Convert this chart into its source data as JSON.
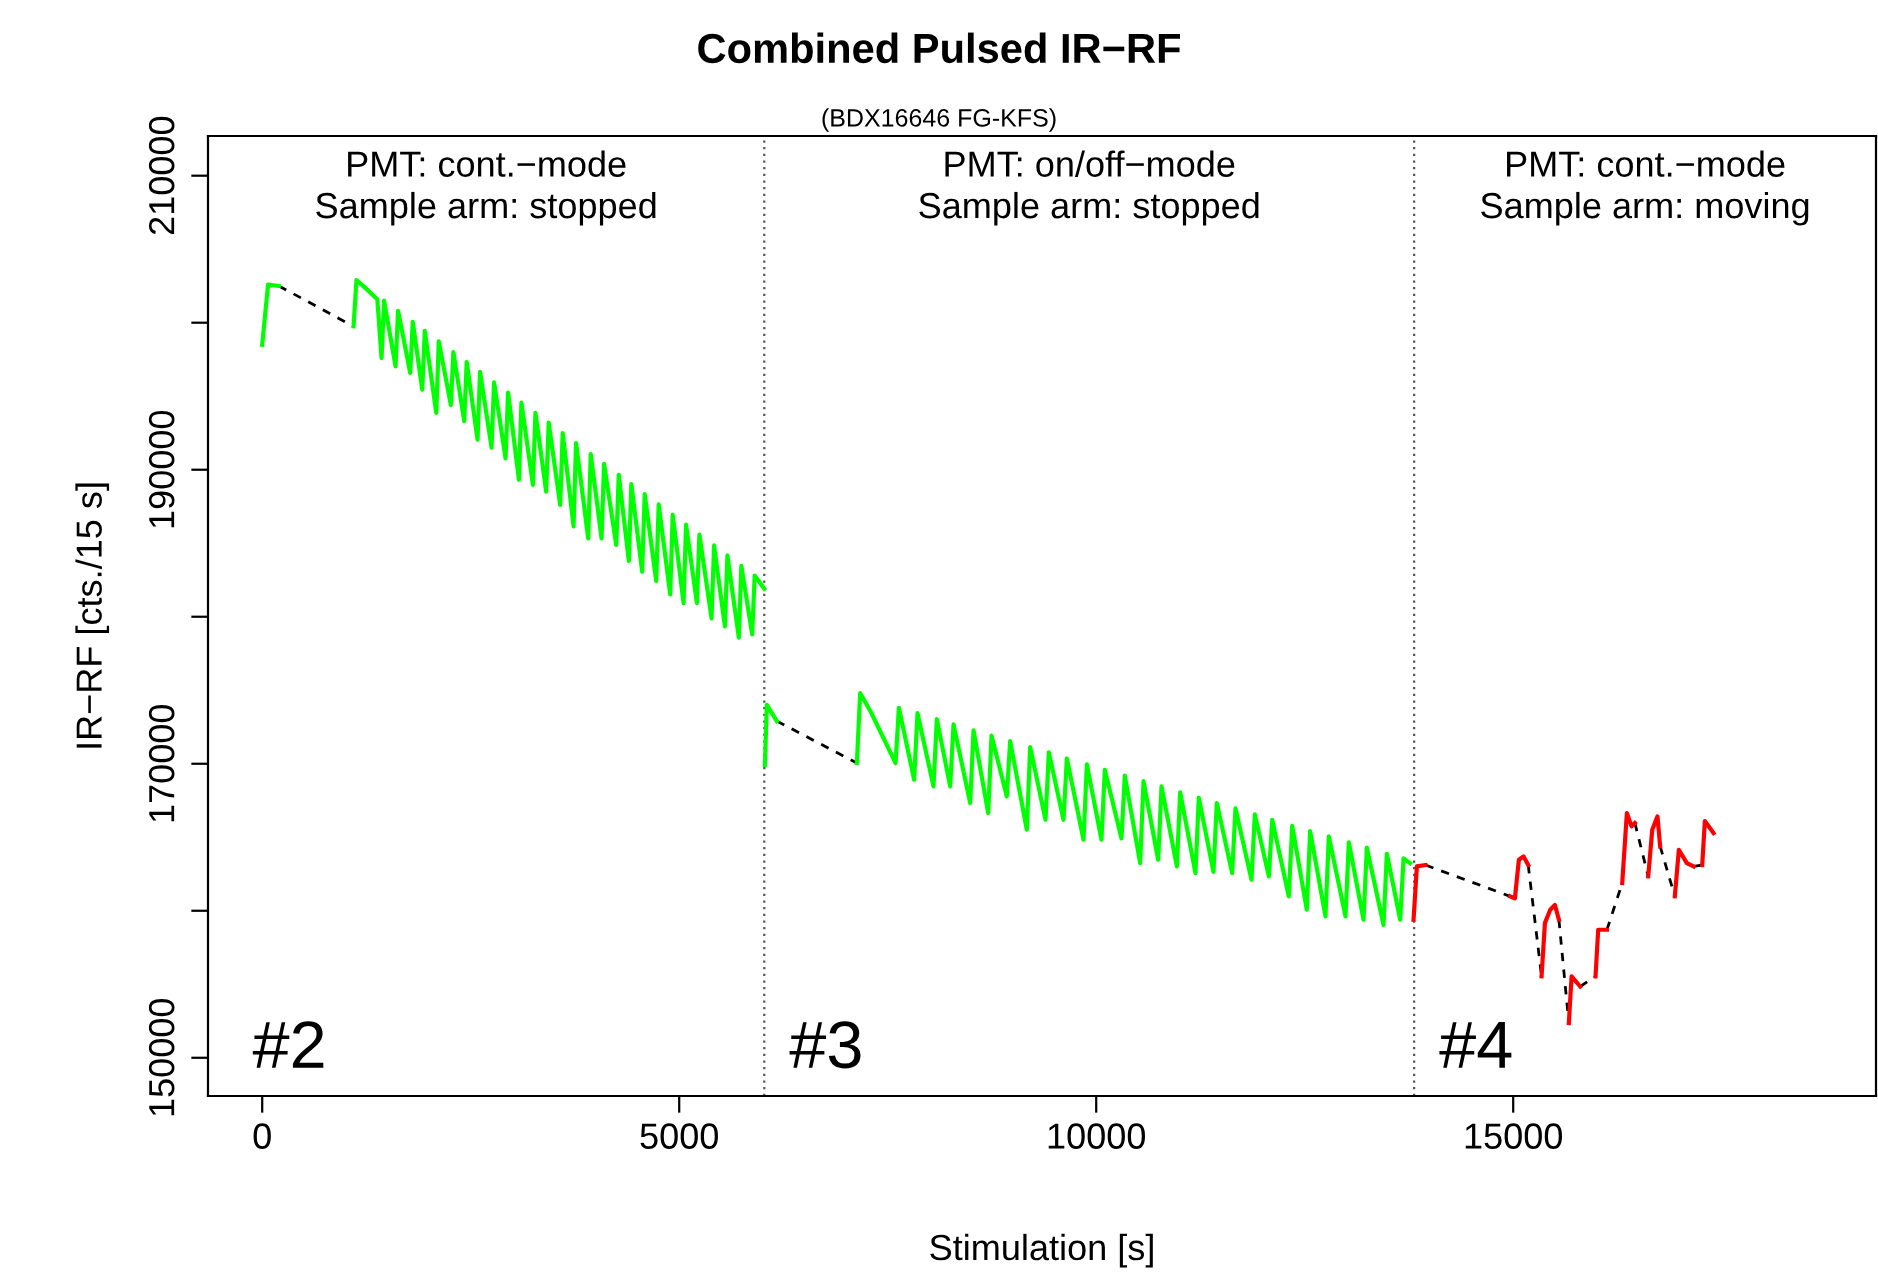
{
  "chart_data": {
    "type": "line",
    "title": "Combined Pulsed IR−RF",
    "subtitle": "(BDX16646 FG-KFS)",
    "xlabel": "Stimulation [s]",
    "ylabel": "IR−RF [cts./15 s]",
    "xlim": [
      -650,
      19350
    ],
    "ylim": [
      147400,
      212700
    ],
    "xticks": [
      0,
      5000,
      10000,
      15000
    ],
    "yticks": [
      150000,
      {
        "value": 160000,
        "label": null
      },
      170000,
      {
        "value": 180000,
        "label": null
      },
      190000,
      {
        "value": 200000,
        "label": null
      },
      210000
    ],
    "grid": false,
    "legend": false,
    "marker": "none",
    "ref_lines": [
      {
        "axis": "x",
        "value": 6020,
        "color": "#555555",
        "line_style": "dotted"
      },
      {
        "axis": "x",
        "value": 13812,
        "color": "#555555",
        "line_style": "dotted"
      }
    ],
    "annotations": [
      "PMT: cont.−mode\nSample arm: stopped",
      "PMT: on/off−mode\nSample arm: stopped",
      "PMT: cont.−mode\nSample arm: moving",
      "#2",
      "#3",
      "#4"
    ],
    "series": [
      {
        "color": "#00ff00",
        "line_style": "solid",
        "x": [
          0,
          70,
          200,
          600,
          1095,
          1130,
          1250,
          1380,
          1431,
          1461,
          1599,
          1629,
          1775,
          1805,
          1919,
          1949,
          2087,
          2117,
          2262,
          2292,
          2422,
          2452,
          2582,
          2612,
          2750,
          2780,
          2918,
          2948,
          3078,
          3108,
          3246,
          3276,
          3405,
          3435,
          3573,
          3603,
          3733,
          3763,
          3909,
          3939,
          4069,
          4099,
          4245,
          4275,
          4396,
          4426,
          4556,
          4586,
          4724,
          4754,
          4892,
          4922,
          5052,
          5082,
          5212,
          5242,
          5388,
          5418,
          5548,
          5578,
          5715,
          5745,
          5875,
          5905,
          6020,
          6025,
          6027,
          6051,
          6171,
          6600,
          7130,
          7170,
          7300,
          7594,
          7634,
          7817,
          7857,
          8049,
          8089,
          8249,
          8289,
          8489,
          8529,
          8705,
          8745,
          8928,
          8968,
          9168,
          9208,
          9392,
          9432,
          9608,
          9648,
          9848,
          9888,
          10063,
          10103,
          10303,
          10343,
          10527,
          10567,
          10743,
          10783,
          10967,
          11007,
          11190,
          11230,
          11406,
          11446,
          11630,
          11670,
          11862,
          11902,
          12070,
          12110,
          12309,
          12350,
          12525,
          12565,
          12749,
          12789,
          12989,
          13029,
          13205,
          13245,
          13445,
          13485,
          13645,
          13685,
          13764
        ],
        "values": [
          198500,
          202600,
          202500,
          null,
          199750,
          202900,
          202300,
          201600,
          197600,
          201500,
          197030,
          200800,
          196580,
          200060,
          195440,
          199450,
          193860,
          198740,
          194400,
          198010,
          193310,
          197330,
          192040,
          196660,
          191500,
          195950,
          190770,
          195250,
          189320,
          194570,
          188960,
          193870,
          188500,
          193200,
          187600,
          192490,
          186150,
          191810,
          185330,
          191070,
          185330,
          190400,
          184880,
          189660,
          183790,
          189020,
          183060,
          188350,
          182430,
          187640,
          181520,
          186940,
          180930,
          186260,
          180930,
          185590,
          179890,
          184850,
          179340,
          184170,
          178570,
          183470,
          178800,
          182800,
          181900,
          null,
          169910,
          174000,
          172900,
          null,
          170050,
          174800,
          173500,
          170050,
          173810,
          168910,
          173450,
          168460,
          173040,
          168460,
          172680,
          167330,
          172270,
          166645,
          171910,
          167780,
          171540,
          165510,
          171140,
          166190,
          170770,
          166190,
          170360,
          164830,
          169960,
          164830,
          169590,
          164920,
          169190,
          163240,
          168820,
          163470,
          168460,
          163020,
          168050,
          162560,
          167690,
          162650,
          167330,
          162560,
          166960,
          162110,
          166555,
          162340,
          166190,
          160980,
          165780,
          160070,
          165420,
          159620,
          165060,
          159620,
          164650,
          159390,
          164290,
          159030,
          163880,
          159390,
          163560,
          163240
        ]
      },
      {
        "color": "#ff0000",
        "line_style": "solid",
        "x": [
          13805,
          13845,
          13949,
          14500,
          14964,
          15020,
          15068,
          15124,
          15180,
          15260,
          15340,
          15380,
          15444,
          15500,
          15548,
          15600,
          15667,
          15700,
          15803,
          15900,
          15987,
          16019,
          16124,
          16200,
          16307,
          16363,
          16419,
          16459,
          16540,
          16619,
          16667,
          16730,
          16762,
          16850,
          16938,
          16986,
          17082,
          17162,
          17210,
          17266,
          17298,
          17402
        ],
        "values": [
          159390,
          163020,
          163110,
          null,
          160980,
          160840,
          163470,
          163700,
          163110,
          null,
          155540,
          159160,
          160070,
          160390,
          159390,
          null,
          152360,
          155540,
          154850,
          null,
          155540,
          158710,
          158710,
          null,
          161880,
          166650,
          165740,
          165970,
          null,
          162340,
          165510,
          166420,
          164380,
          null,
          160980,
          164150,
          163240,
          163020,
          null,
          163110,
          166100,
          165280
        ]
      },
      {
        "color": "#000000",
        "line_style": "dashed",
        "x": [
          200,
          1095,
          3000,
          6171,
          7130,
          10000,
          13949,
          14964,
          15050,
          15180,
          15340,
          15450,
          15548,
          15667,
          15750,
          15803,
          15987,
          16050,
          16124,
          16307,
          16400,
          16459,
          16619,
          16700,
          16762,
          16938,
          17050,
          17162,
          17266
        ],
        "values": [
          202500,
          199750,
          null,
          172900,
          170050,
          null,
          163110,
          160980,
          null,
          163110,
          155540,
          null,
          159390,
          152360,
          null,
          154850,
          155540,
          null,
          158710,
          161880,
          null,
          165970,
          162340,
          null,
          164380,
          160980,
          null,
          163020,
          163110
        ]
      }
    ]
  }
}
